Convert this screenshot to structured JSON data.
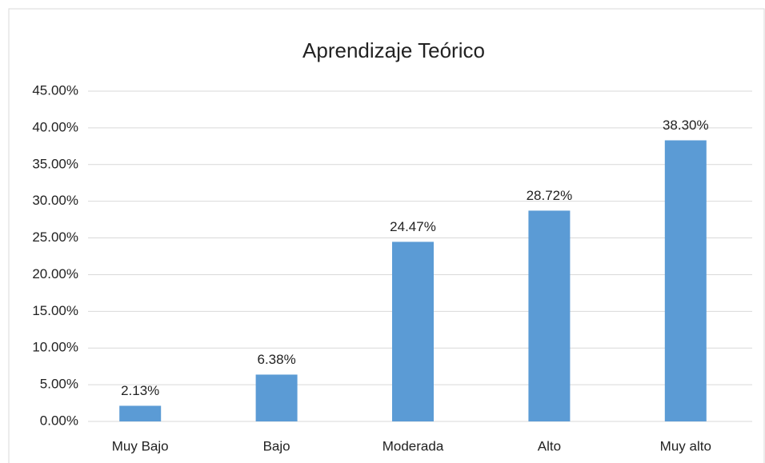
{
  "chart_data": {
    "type": "bar",
    "title": "Aprendizaje Teórico",
    "categories": [
      "Muy Bajo",
      "Bajo",
      "Moderada",
      "Alto",
      "Muy alto"
    ],
    "values": [
      2.13,
      6.38,
      24.47,
      28.72,
      38.3
    ],
    "value_labels": [
      "2.13%",
      "6.38%",
      "24.47%",
      "28.72%",
      "38.30%"
    ],
    "color": "#5b9bd5",
    "ylim": [
      0,
      45
    ],
    "yticks": [
      {
        "value": 0,
        "label": "0.00%"
      },
      {
        "value": 5,
        "label": "5.00%"
      },
      {
        "value": 10,
        "label": "10.00%"
      },
      {
        "value": 15,
        "label": "15.00%"
      },
      {
        "value": 20,
        "label": "20.00%"
      },
      {
        "value": 25,
        "label": "25.00%"
      },
      {
        "value": 30,
        "label": "30.00%"
      },
      {
        "value": 35,
        "label": "35.00%"
      },
      {
        "value": 40,
        "label": "40.00%"
      },
      {
        "value": 45,
        "label": "45.00%"
      }
    ],
    "grid": true
  }
}
